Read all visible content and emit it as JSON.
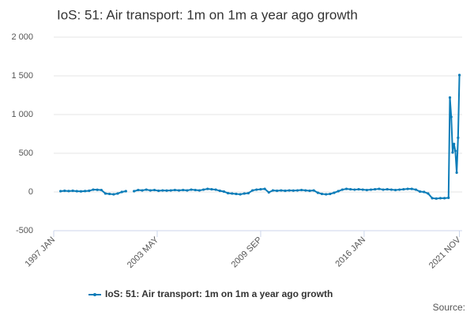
{
  "chart_data": {
    "type": "line",
    "title": "IoS: 51: Air transport: 1m on 1m a year ago growth",
    "source": "Source:",
    "x": [
      "1997 JUN",
      "1997 SEP",
      "1997 DEC",
      "1998 MAR",
      "1998 JUN",
      "1998 SEP",
      "1998 DEC",
      "1999 MAR",
      "1999 JUN",
      "1999 SEP",
      "1999 DEC",
      "2000 MAR",
      "2000 JUN",
      "2000 SEP",
      "2000 DEC",
      "2001 MAR",
      "2001 JUN",
      "2001 SEP",
      "2001 DEC",
      "2002 MAR",
      "2002 JUN",
      "2002 SEP",
      "2002 DEC",
      "2003 MAR",
      "2003 JUN",
      "2003 SEP",
      "2003 DEC",
      "2004 MAR",
      "2004 JUN",
      "2004 SEP",
      "2004 DEC",
      "2005 MAR",
      "2005 JUN",
      "2005 SEP",
      "2005 DEC",
      "2006 MAR",
      "2006 JUN",
      "2006 SEP",
      "2006 DEC",
      "2007 MAR",
      "2007 JUN",
      "2007 SEP",
      "2007 DEC",
      "2008 MAR",
      "2008 JUN",
      "2008 SEP",
      "2008 DEC",
      "2009 MAR",
      "2009 JUN",
      "2009 SEP",
      "2009 DEC",
      "2010 MAR",
      "2010 JUN",
      "2010 SEP",
      "2010 DEC",
      "2011 MAR",
      "2011 JUN",
      "2011 SEP",
      "2011 DEC",
      "2012 MAR",
      "2012 JUN",
      "2012 SEP",
      "2012 DEC",
      "2013 MAR",
      "2013 JUN",
      "2013 SEP",
      "2013 DEC",
      "2014 MAR",
      "2014 JUN",
      "2014 SEP",
      "2014 DEC",
      "2015 MAR",
      "2015 JUN",
      "2015 SEP",
      "2015 DEC",
      "2016 MAR",
      "2016 JUN",
      "2016 SEP",
      "2016 DEC",
      "2017 MAR",
      "2017 JUN",
      "2017 SEP",
      "2017 DEC",
      "2018 MAR",
      "2018 JUN",
      "2018 SEP",
      "2018 DEC",
      "2019 MAR",
      "2019 JUN",
      "2019 SEP",
      "2019 DEC",
      "2020 MAR",
      "2020 JUN",
      "2020 SEP",
      "2020 DEC",
      "2021 MAR",
      "2021 APR",
      "2021 MAY",
      "2021 JUN",
      "2021 JUL",
      "2021 AUG",
      "2021 SEP",
      "2021 OCT",
      "2021 NOV"
    ],
    "series": [
      {
        "name": "IoS: 51: Air transport: 1m on 1m a year ago growth",
        "color": "#0b7cb8",
        "values": [
          10,
          15,
          12,
          15,
          10,
          8,
          12,
          15,
          30,
          28,
          25,
          -20,
          -25,
          -30,
          -20,
          0,
          10,
          null,
          10,
          25,
          20,
          30,
          20,
          25,
          15,
          20,
          18,
          20,
          25,
          20,
          25,
          20,
          30,
          25,
          20,
          30,
          40,
          35,
          30,
          15,
          5,
          -15,
          -20,
          -25,
          -30,
          -20,
          -15,
          20,
          30,
          35,
          40,
          -5,
          20,
          15,
          20,
          15,
          20,
          18,
          20,
          25,
          20,
          15,
          20,
          -10,
          -25,
          -30,
          -25,
          -10,
          10,
          30,
          40,
          35,
          30,
          35,
          30,
          25,
          30,
          35,
          40,
          30,
          35,
          30,
          25,
          30,
          35,
          40,
          40,
          30,
          5,
          0,
          -20,
          -80,
          -85,
          -80,
          -80,
          -75,
          1220,
          970,
          510,
          620,
          530,
          250,
          700,
          1510
        ]
      }
    ],
    "xlim": [
      "1997 JAN",
      "2022 JAN"
    ],
    "xticks": [
      "1997 JAN",
      "2003 MAY",
      "2009 SEP",
      "2016 JAN",
      "2021 NOV"
    ],
    "ylim": [
      -500,
      2000
    ],
    "yticks": [
      {
        "value": -500,
        "label": "-500"
      },
      0,
      500,
      {
        "value": 1000,
        "label": "1 000"
      },
      {
        "value": 1500,
        "label": "1 500"
      },
      {
        "value": 2000,
        "label": "2 000"
      }
    ],
    "grid": true
  }
}
